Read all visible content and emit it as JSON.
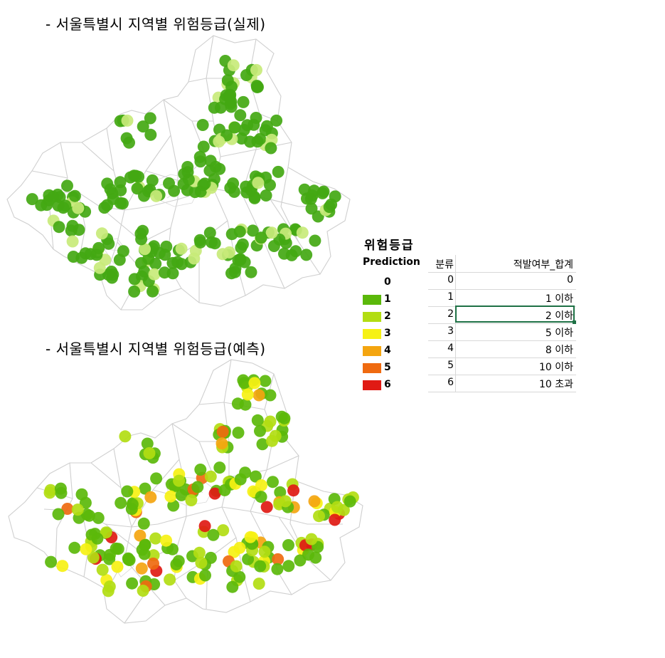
{
  "titles": {
    "actual": "- 서울특별시 지역별 위험등급(실제)",
    "predicted": "- 서울특별시 지역별 위험등급(예측)"
  },
  "legend": {
    "title": "위험등급",
    "prediction_header": "Prediction",
    "classes": [
      {
        "label": "0",
        "color": null
      },
      {
        "label": "1",
        "color": "#5bb80a"
      },
      {
        "label": "2",
        "color": "#b2dd12"
      },
      {
        "label": "3",
        "color": "#f6f114"
      },
      {
        "label": "4",
        "color": "#f4a510"
      },
      {
        "label": "5",
        "color": "#ef6a10"
      },
      {
        "label": "6",
        "color": "#e01a14"
      }
    ]
  },
  "table": {
    "headers": [
      "분류",
      "적발여부_합계"
    ],
    "rows": [
      [
        "0",
        "0"
      ],
      [
        "1",
        "1 이하"
      ],
      [
        "2",
        "2 이하"
      ],
      [
        "3",
        "5 이하"
      ],
      [
        "4",
        "8 이하"
      ],
      [
        "5",
        "10 이하"
      ],
      [
        "6",
        "10 초과"
      ]
    ],
    "selected_row": 2
  },
  "colors": {
    "actual_green": "#43a812",
    "light_green": "#c8ea7a",
    "map_border": "#cfcfcf",
    "selection_border": "#1e7145"
  }
}
